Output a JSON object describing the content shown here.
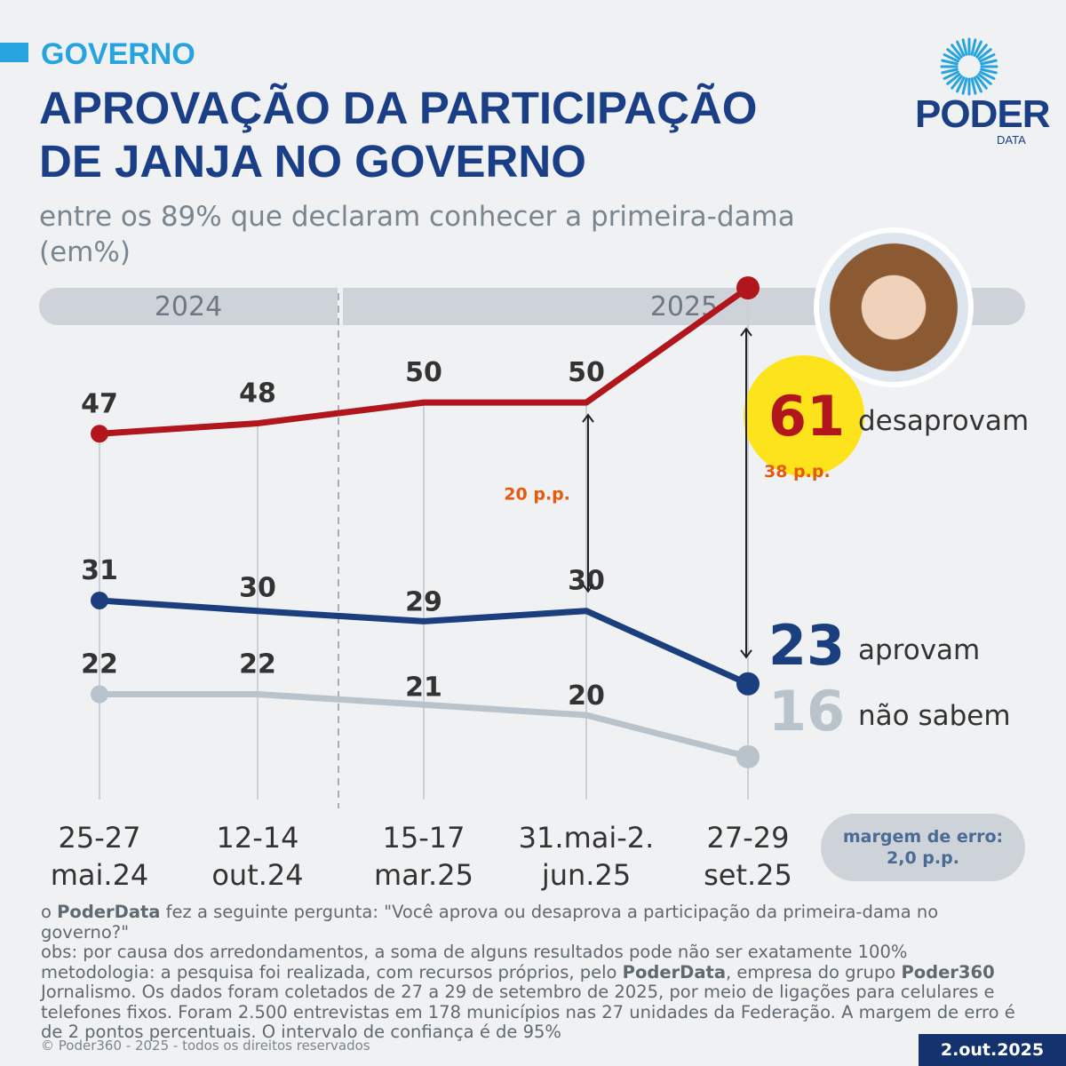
{
  "header": {
    "kicker": "GOVERNO",
    "title": "APROVAÇÃO DA PARTICIPAÇÃO\nDE JANJA NO GOVERNO",
    "subtitle": "entre os 89% que declaram conhecer a primeira-dama\n(em%)",
    "logo_word": "PODER",
    "logo_sub": "DATA"
  },
  "years": [
    "2024",
    "2025"
  ],
  "chart_data": {
    "type": "line",
    "categories": [
      "25-27\nmai.24",
      "12-14\nout.24",
      "15-17\nmar.25",
      "31.mai-2.\njun.25",
      "27-29\nset.25"
    ],
    "series": [
      {
        "name": "desaprovam",
        "values": [
          47,
          48,
          50,
          50,
          61
        ],
        "color": "#b1161c"
      },
      {
        "name": "aprovam",
        "values": [
          31,
          30,
          29,
          30,
          23
        ],
        "color": "#1b3f7e"
      },
      {
        "name": "não sabem",
        "values": [
          22,
          22,
          21,
          20,
          16
        ],
        "color": "#b8c3cc"
      }
    ],
    "annotations": [
      {
        "text": "20 p.p.",
        "between": [
          50,
          30
        ],
        "at_category": 3
      },
      {
        "text": "38 p.p.",
        "between": [
          61,
          23
        ],
        "at_category": 4
      }
    ],
    "ylim": [
      0,
      70
    ],
    "highlight_color": "#fde31b",
    "annotation_color": "#e8590c",
    "legend_placement": "right"
  },
  "margin": {
    "line1": "margem de erro:",
    "line2": "2,0 p.p."
  },
  "notes": {
    "q_prefix": "o ",
    "q_bold": "PoderData",
    "q_rest": " fez a seguinte pergunta: \"Você aprova ou desaprova a participação da primeira-dama no governo?\"",
    "obs": "obs: por causa dos arredondamentos, a soma de alguns resultados pode não ser exatamente 100%",
    "m1": "metodologia: a pesquisa foi realizada, com recursos próprios, pelo ",
    "m_bold1": "PoderData",
    "m2": ", empresa do grupo ",
    "m_bold2": "Poder360",
    "m3": " Jornalismo. Os dados foram coletados de 27 a 29 de setembro de 2025, por meio de ligações para celulares e telefones fixos. Foram 2.500 entrevistas em 178 municípios nas 27 unidades da Federação. A margem de erro é de 2 pontos percentuais. O intervalo de confiança é de 95%"
  },
  "copyright": "© Poder360 - 2025 - todos os direitos reservados",
  "date": "2.out.2025"
}
